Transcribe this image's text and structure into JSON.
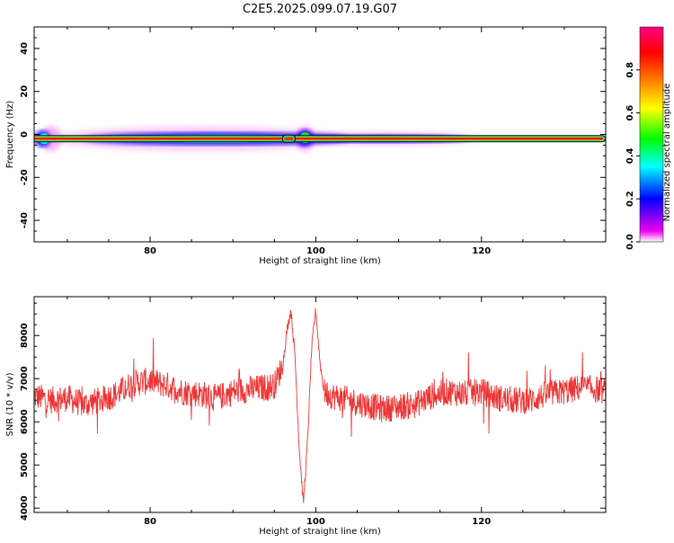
{
  "title": "C2E5.2025.099.07.19.G07",
  "chart_data": [
    {
      "type": "heatmap",
      "xlabel": "Height of straight line (km)",
      "ylabel": "Frequency (Hz)",
      "xlim": [
        66,
        135
      ],
      "ylim": [
        -50,
        50
      ],
      "xticks": [
        80,
        100,
        120
      ],
      "yticks": [
        -40,
        -20,
        0,
        20,
        40
      ],
      "colorbar": {
        "label": "Normalized spectral amplitude",
        "range": [
          0.0,
          1.0
        ],
        "ticks": [
          "0.0",
          "0.2",
          "0.4",
          "0.6",
          "0.8"
        ]
      },
      "ridge_frequency_hz": -2,
      "colors": [
        "#ee00ee",
        "#0000ff",
        "#00ffff",
        "#00ff00",
        "#ffff00",
        "#ff8000",
        "#ff0000",
        "#ff0080"
      ]
    },
    {
      "type": "line",
      "xlabel": "Height of straight line (km)",
      "ylabel": "SNR (10 * v/v)",
      "xlim": [
        66,
        135
      ],
      "ylim": [
        3900,
        8900
      ],
      "xticks": [
        80,
        100,
        120
      ],
      "yticks": [
        4000,
        5000,
        6000,
        7000,
        8000
      ],
      "color": "#ee3333",
      "series": [
        {
          "x": [
            66,
            68,
            70,
            72,
            74,
            76,
            78,
            80,
            82,
            84,
            86,
            88,
            90,
            92,
            94,
            95,
            96,
            96.5,
            97,
            97.5,
            98,
            98.5,
            99,
            99.5,
            100,
            100.5,
            101,
            102,
            104,
            106,
            108,
            110,
            112,
            114,
            116,
            118,
            120,
            122,
            124,
            126,
            128,
            130,
            132,
            134,
            135
          ],
          "y": [
            6600,
            6500,
            6550,
            6400,
            6500,
            6650,
            6900,
            6950,
            6850,
            6700,
            6650,
            6550,
            6700,
            6750,
            6800,
            6850,
            7300,
            8100,
            8600,
            7500,
            5400,
            4100,
            5500,
            7700,
            8600,
            7400,
            6700,
            6600,
            6500,
            6400,
            6300,
            6350,
            6400,
            6600,
            6700,
            6650,
            6700,
            6550,
            6500,
            6500,
            6650,
            6700,
            6800,
            6750,
            6700
          ]
        }
      ]
    }
  ]
}
